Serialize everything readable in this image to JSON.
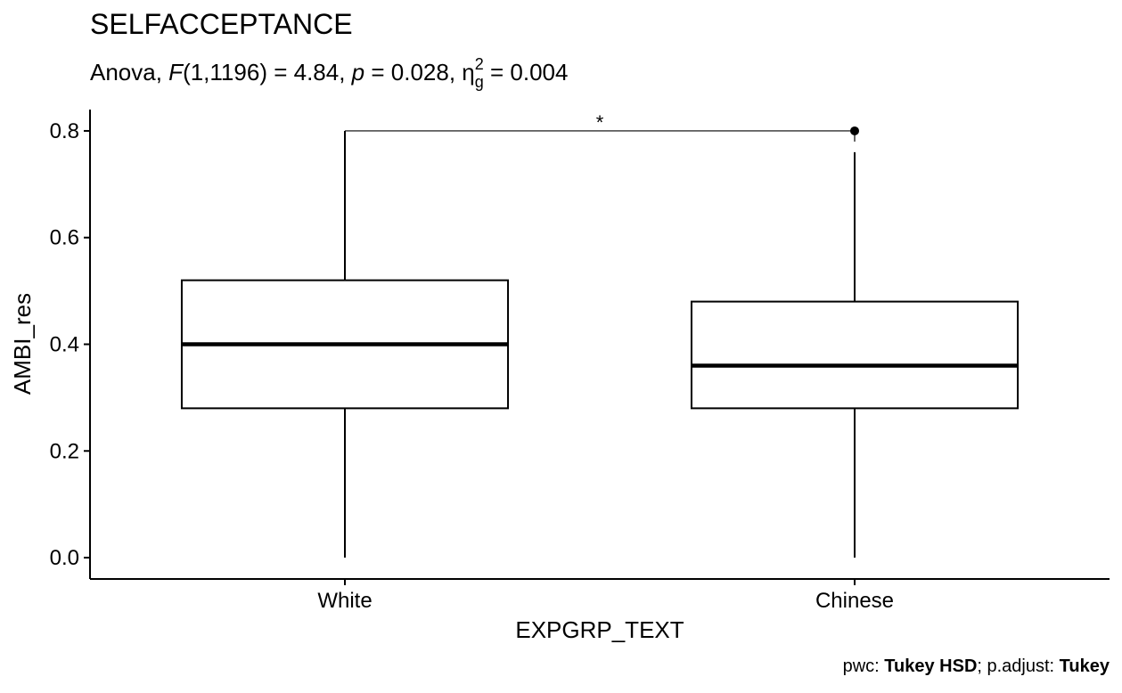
{
  "chart_data": {
    "type": "box",
    "title": "SELFACCEPTANCE",
    "subtitle": {
      "prefix": "Anova, ",
      "f_symbol": "F",
      "f_args": "(1,1196) = 4.84, ",
      "p_symbol": "p",
      "p_value": " = 0.028, ",
      "eta_symbol": "η",
      "eta_sub": "g",
      "eta_sup": "2",
      "eta_value": " = 0.004"
    },
    "xlabel": "EXPGRP_TEXT",
    "ylabel": "AMBI_res",
    "ylim": [
      -0.04,
      0.84
    ],
    "yticks": [
      0.0,
      0.2,
      0.4,
      0.6,
      0.8
    ],
    "ytick_labels": [
      "0.0",
      "0.2",
      "0.4",
      "0.6",
      "0.8"
    ],
    "categories": [
      "White",
      "Chinese"
    ],
    "boxes": [
      {
        "category": "White",
        "min": 0.0,
        "q1": 0.28,
        "median": 0.4,
        "q3": 0.52,
        "max": 0.8,
        "outliers": []
      },
      {
        "category": "Chinese",
        "min": 0.0,
        "q1": 0.28,
        "median": 0.36,
        "q3": 0.48,
        "max": 0.76,
        "outliers": [
          0.8
        ]
      }
    ],
    "significance": {
      "from": "White",
      "to": "Chinese",
      "y": 0.8,
      "label": "*"
    },
    "caption": {
      "pwc_label": "pwc: ",
      "pwc_value": "Tukey HSD",
      "sep": "; p.adjust: ",
      "adjust_value": "Tukey"
    }
  }
}
